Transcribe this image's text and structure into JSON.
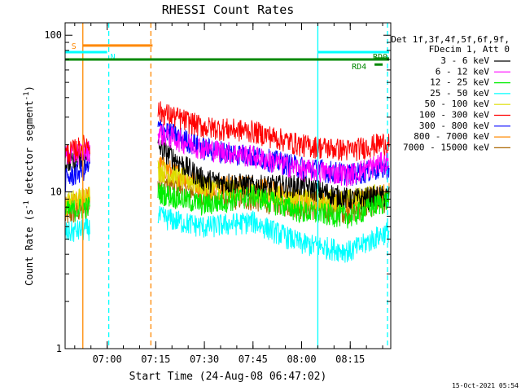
{
  "chart_data": {
    "type": "line",
    "title": "RHESSI Count Rates",
    "xlabel": "Start Time (24-Aug-08 06:47:02)",
    "ylabel_main": "Count Rate (s",
    "ylabel_sup1": "-1",
    "ylabel_mid": " detector segment",
    "ylabel_sup2": "-1",
    "ylabel_end": ")",
    "y_scale": "log",
    "ylim": [
      1,
      120
    ],
    "xlim": [
      "06:47:02",
      "08:27:30"
    ],
    "x_ticks": [
      "07:00",
      "07:15",
      "07:30",
      "07:45",
      "08:00",
      "08:15"
    ],
    "y_ticks": [
      "1",
      "10",
      "100"
    ],
    "footer_date": "15-Oct-2021 05:54",
    "legend_header": [
      "Det 1f,3f,4f,5f,6f,9f,",
      "FDecim 1, Att 0"
    ],
    "legend_position": "right",
    "data_gap": [
      "06:54:40",
      "07:15:40"
    ],
    "series": [
      {
        "name": "3 - 6 keV",
        "color": "#000000",
        "values": [
          15.0,
          19.5,
          12.0,
          11.0,
          11.0,
          9.0,
          9.5
        ]
      },
      {
        "name": "6 - 12 keV",
        "color": "#ff00ff",
        "values": [
          17.0,
          24.0,
          19.0,
          17.0,
          14.0,
          13.0,
          16.0
        ]
      },
      {
        "name": "12 - 25 keV",
        "color": "#00ee00",
        "values": [
          7.5,
          10.0,
          8.3,
          9.5,
          7.5,
          7.0,
          9.0
        ]
      },
      {
        "name": "25 - 50 keV",
        "color": "#00ffff",
        "values": [
          5.5,
          7.0,
          6.0,
          6.5,
          4.7,
          4.2,
          5.7
        ]
      },
      {
        "name": "50 - 100 keV",
        "color": "#dddd00",
        "values": [
          8.5,
          14.0,
          11.0,
          10.0,
          9.0,
          9.0,
          10.0
        ]
      },
      {
        "name": "100 - 300 keV",
        "color": "#ff0000",
        "values": [
          17.5,
          33.0,
          26.0,
          24.5,
          20.0,
          18.5,
          21.0
        ]
      },
      {
        "name": "300 - 800 keV",
        "color": "#0000ff",
        "values": [
          12.0,
          26.0,
          19.0,
          17.0,
          14.5,
          13.0,
          14.5
        ]
      },
      {
        "name": "800 - 7000 keV",
        "color": "#ff8800",
        "values": [
          8.0,
          15.0,
          11.0,
          11.0,
          9.0,
          8.5,
          10.0
        ]
      },
      {
        "name": "7000 - 15000 keV",
        "color": "#aa6600",
        "values": [
          7.0,
          12.0,
          9.5,
          9.0,
          8.0,
          7.5,
          9.0
        ]
      }
    ],
    "x_knots": [
      "06:47:02",
      "07:15:40",
      "07:30:00",
      "07:45:00",
      "08:00:00",
      "08:15:00",
      "08:27:00"
    ],
    "flags": [
      {
        "label": "S",
        "color": "#ff8800",
        "start": "06:52:30",
        "end": "07:14:00",
        "level": 86
      },
      {
        "label": "N",
        "color": "#00ffff",
        "start": "06:47:02",
        "end": "07:00:00",
        "level": 78
      },
      {
        "label": "",
        "color": "#00ffff",
        "start": "08:05:00",
        "end": "08:27:00",
        "level": 78
      },
      {
        "label": "",
        "color": "#008800",
        "start": "06:47:02",
        "end": "08:27:00",
        "level": 70
      },
      {
        "label": "RD0",
        "color": "#008800",
        "start": "08:22:30",
        "end": "08:27:00",
        "level": 71
      },
      {
        "label": "RD4",
        "color": "#008800",
        "start": "08:22:30",
        "end": "08:25:00",
        "level": 65
      }
    ],
    "vlines": [
      {
        "time": "06:52:30",
        "color": "#ff8800",
        "style": "solid"
      },
      {
        "time": "07:00:30",
        "color": "#00ffff",
        "style": "dashed"
      },
      {
        "time": "07:13:30",
        "color": "#ff8800",
        "style": "dashed"
      },
      {
        "time": "08:05:00",
        "color": "#00ffff",
        "style": "solid"
      },
      {
        "time": "08:26:30",
        "color": "#00ffff",
        "style": "dashed"
      }
    ]
  }
}
